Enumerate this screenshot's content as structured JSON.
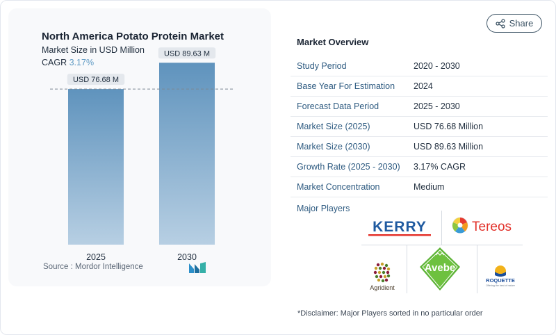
{
  "share": {
    "label": "Share",
    "icon": "share-icon"
  },
  "chart": {
    "title": "North America Potato Protein Market",
    "subtitle": "Market Size in USD Million",
    "cagr_label": "CAGR",
    "cagr_value": "3.17%",
    "source": "Source :  Mordor Intelligence"
  },
  "chart_data": {
    "type": "bar",
    "categories": [
      "2025",
      "2030"
    ],
    "values": [
      76.68,
      89.63
    ],
    "data_labels": [
      "USD 76.68 M",
      "USD 89.63 M"
    ],
    "unit": "USD Million",
    "ylim": [
      0,
      100
    ],
    "reference_line": 76.68,
    "grid": false,
    "colors": {
      "bar_top": "#5f93bd",
      "bar_bottom": "#b7cfe3"
    }
  },
  "overview": {
    "title": "Market Overview",
    "rows": [
      {
        "key": "Study Period",
        "value": "2020 - 2030"
      },
      {
        "key": "Base Year For Estimation",
        "value": "2024"
      },
      {
        "key": "Forecast Data Period",
        "value": "2025 - 2030"
      },
      {
        "key": "Market Size (2025)",
        "value": "USD 76.68 Million"
      },
      {
        "key": "Market Size (2030)",
        "value": "USD 89.63 Million"
      },
      {
        "key": "Growth Rate (2025 - 2030)",
        "value": "3.17% CAGR"
      },
      {
        "key": "Market Concentration",
        "value": "Medium"
      }
    ],
    "players_label": "Major Players",
    "players": {
      "kerry": "KERRY",
      "tereos": "Tereos",
      "avebe": "Avebe",
      "agridient": "Agridient",
      "roquette": "ROQUETTE",
      "roquette_tagline": "Offering the best of nature"
    },
    "disclaimer": "*Disclaimer: Major Players sorted in no particular order"
  }
}
